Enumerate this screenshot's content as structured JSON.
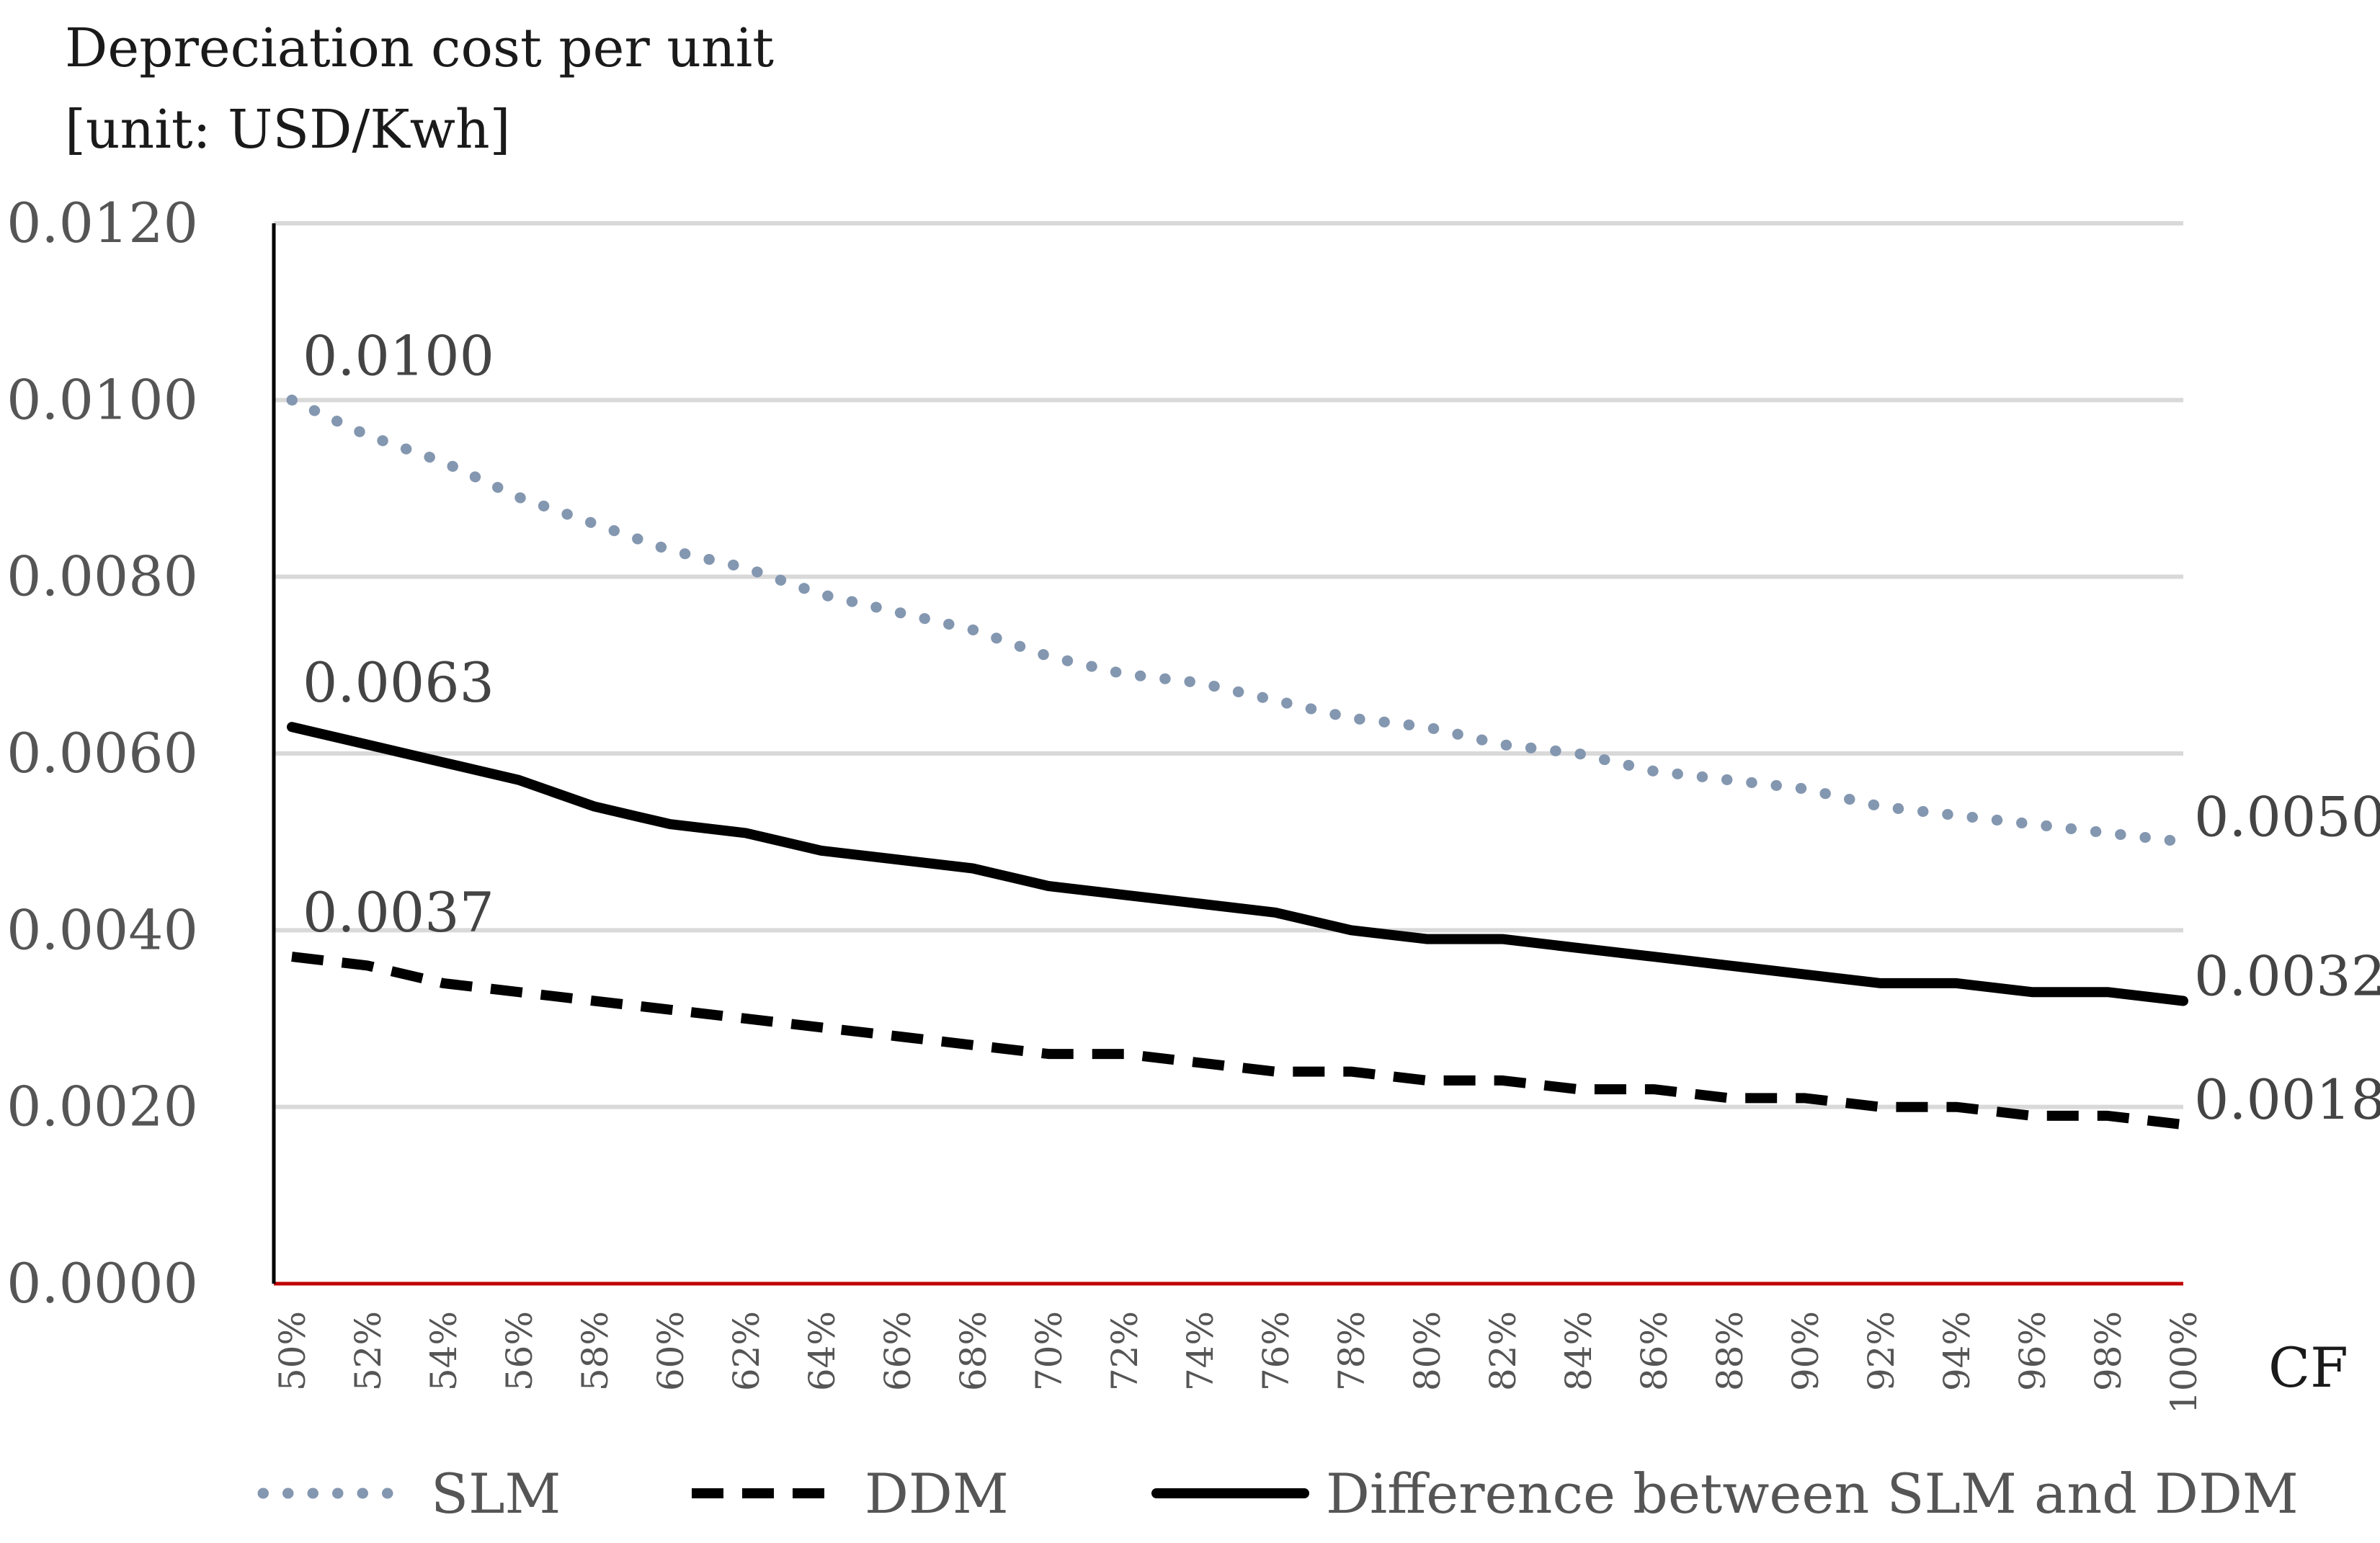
{
  "chart_data": {
    "type": "line",
    "title": "",
    "ylabel_lines": [
      "Depreciation cost per unit",
      "[unit: USD/Kwh]"
    ],
    "xlabel": "CF",
    "ylim": [
      0,
      0.012
    ],
    "yticks": [
      0,
      0.002,
      0.004,
      0.006,
      0.008,
      0.01,
      0.012
    ],
    "ytick_labels": [
      "0.0000",
      "0.0020",
      "0.0040",
      "0.0060",
      "0.0080",
      "0.0100",
      "0.0120"
    ],
    "categories": [
      "50%",
      "52%",
      "54%",
      "56%",
      "58%",
      "60%",
      "62%",
      "64%",
      "66%",
      "68%",
      "70%",
      "72%",
      "74%",
      "76%",
      "78%",
      "80%",
      "82%",
      "84%",
      "86%",
      "88%",
      "90%",
      "92%",
      "94%",
      "96%",
      "98%",
      "100%"
    ],
    "cf_values": [
      0.5,
      0.52,
      0.54,
      0.56,
      0.58,
      0.6,
      0.62,
      0.64,
      0.66,
      0.68,
      0.7,
      0.72,
      0.74,
      0.76,
      0.78,
      0.8,
      0.82,
      0.84,
      0.86,
      0.88,
      0.9,
      0.92,
      0.94,
      0.96,
      0.98,
      1.0
    ],
    "grid": true,
    "legend_position": "bottom",
    "series": [
      {
        "name": "SLM",
        "style": "dotted",
        "color": "#8497b0",
        "values": [
          0.01,
          0.0096,
          0.0093,
          0.0089,
          0.0086,
          0.0083,
          0.0081,
          0.0078,
          0.0076,
          0.0074,
          0.0071,
          0.0069,
          0.0068,
          0.0066,
          0.0064,
          0.0063,
          0.0061,
          0.006,
          0.0058,
          0.0057,
          0.0056,
          0.0054,
          0.0053,
          0.0052,
          0.0051,
          0.005
        ],
        "start_label": "0.0100",
        "end_label": "0.0050"
      },
      {
        "name": "DDM",
        "style": "dashed",
        "color": "#000000",
        "values": [
          0.0037,
          0.0036,
          0.0034,
          0.0033,
          0.0032,
          0.0031,
          0.003,
          0.0029,
          0.0028,
          0.0027,
          0.0026,
          0.0026,
          0.0025,
          0.0024,
          0.0024,
          0.0023,
          0.0023,
          0.0022,
          0.0022,
          0.0021,
          0.0021,
          0.002,
          0.002,
          0.0019,
          0.0019,
          0.0018
        ],
        "start_label": "0.0037",
        "end_label": "0.0018"
      },
      {
        "name": "Difference between SLM and DDM",
        "style": "solid",
        "color": "#000000",
        "values": [
          0.0063,
          0.0061,
          0.0059,
          0.0057,
          0.0054,
          0.0052,
          0.0051,
          0.0049,
          0.0048,
          0.0047,
          0.0045,
          0.0044,
          0.0043,
          0.0042,
          0.004,
          0.0039,
          0.0039,
          0.0038,
          0.0037,
          0.0036,
          0.0035,
          0.0034,
          0.0034,
          0.0033,
          0.0033,
          0.0032
        ],
        "start_label": "0.0063",
        "end_label": "0.0032"
      }
    ],
    "colors": {
      "grid": "#d9d9d9",
      "baseline": "#c00000",
      "axis": "#000000"
    }
  }
}
